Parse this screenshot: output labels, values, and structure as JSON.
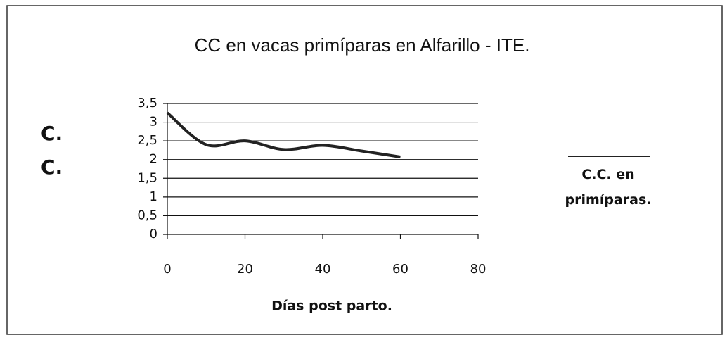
{
  "chart_data": {
    "type": "line",
    "title": "CC en vacas primíparas en Alfarillo - ITE.",
    "xlabel": "Días post parto.",
    "ylabel": "C.C.",
    "x": [
      0,
      10,
      20,
      30,
      40,
      50,
      60
    ],
    "series": [
      {
        "name": "C.C. en primíparas.",
        "color": "#222222",
        "values": [
          3.25,
          2.4,
          2.5,
          2.27,
          2.38,
          2.23,
          2.07
        ]
      }
    ],
    "xlim": [
      0,
      80
    ],
    "xticks": [
      0,
      20,
      40,
      60,
      80
    ],
    "ylim": [
      0,
      3.5
    ],
    "yticks": [
      0,
      {
        "value": 0.5,
        "label": "0,5"
      },
      1,
      {
        "value": 1.5,
        "label": "1,5"
      },
      2,
      {
        "value": 2.5,
        "label": "2,5"
      },
      3,
      {
        "value": 3.5,
        "label": "3,5"
      }
    ],
    "grid": true,
    "legend": "right"
  }
}
